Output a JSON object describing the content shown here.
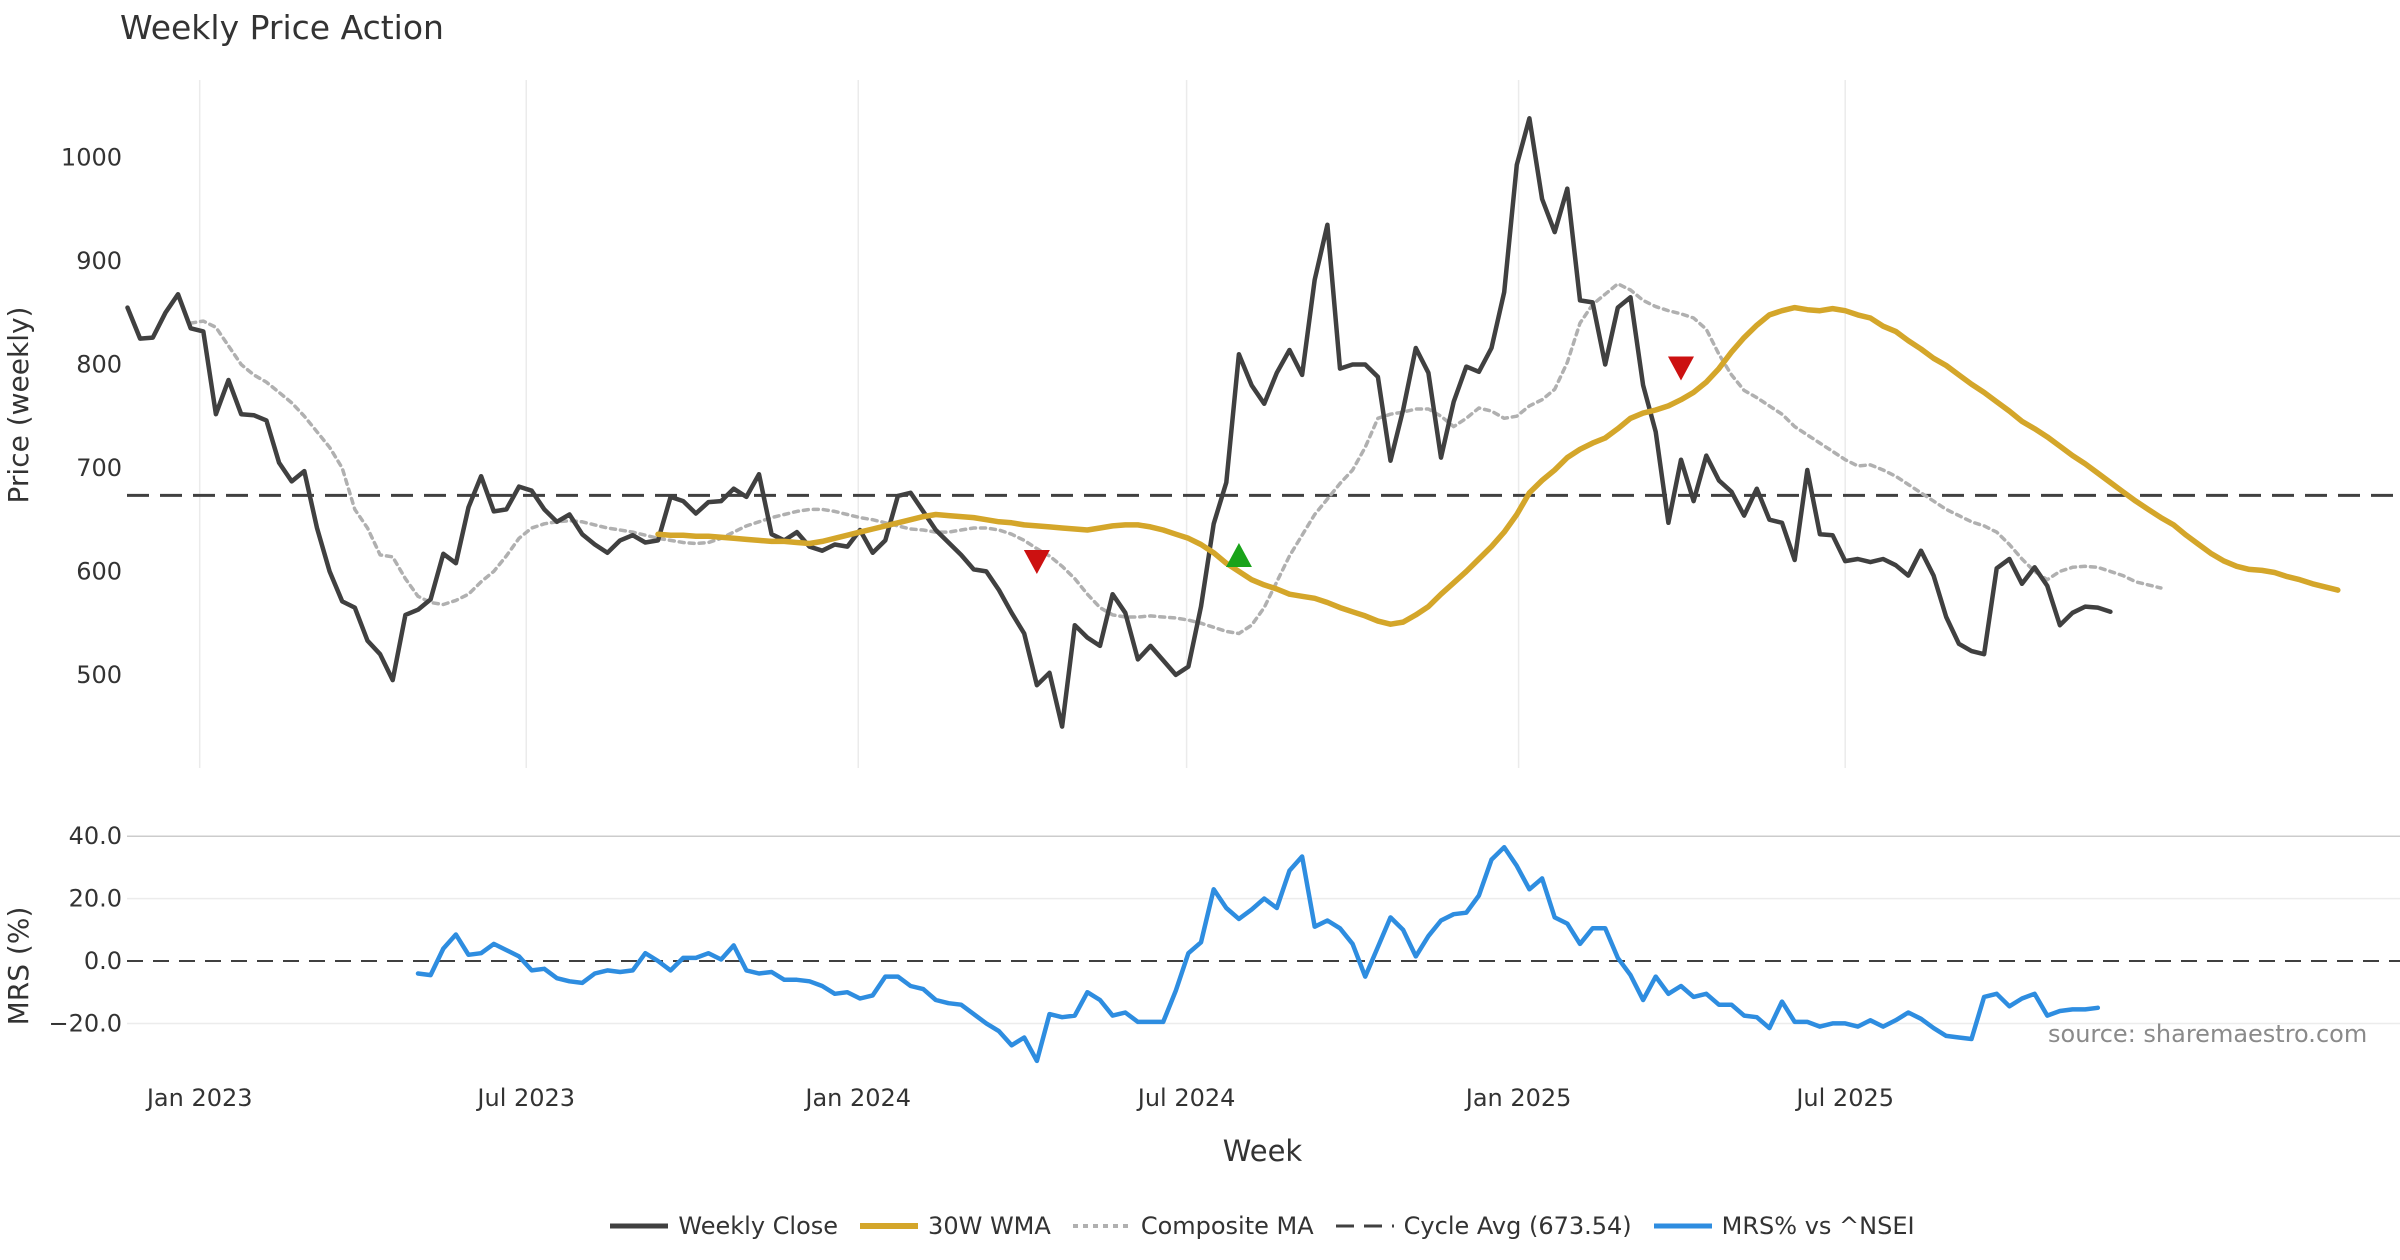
{
  "title": "Weekly Price Action",
  "source": "source: sharemaestro.com",
  "colors": {
    "close": "#404040",
    "wma": "#d4a62a",
    "composite": "#b0b0b0",
    "cycle": "#404040",
    "mrs": "#2e8de0",
    "buy": "#1aa31a",
    "sell": "#cc1111"
  },
  "legend": [
    {
      "key": "close",
      "label": "Weekly Close"
    },
    {
      "key": "wma",
      "label": "30W WMA"
    },
    {
      "key": "composite",
      "label": "Composite MA"
    },
    {
      "key": "cycle",
      "label": "Cycle Avg (673.54)"
    },
    {
      "key": "mrs",
      "label": "MRS% vs ^NSEI"
    }
  ],
  "chart_data": [
    {
      "type": "line",
      "panel": "price",
      "ylabel": "Price (weekly)",
      "yticks": [
        500,
        600,
        700,
        800,
        900,
        1000
      ],
      "ylim": [
        410,
        1075
      ],
      "x_start": "2022-11-22",
      "x_step_days": 7,
      "cycle_avg": 673.54,
      "series": [
        {
          "key": "close",
          "name": "Weekly Close",
          "start_index": 0,
          "values": [
            855,
            825,
            826,
            850,
            868,
            835,
            832,
            752,
            785,
            752,
            751,
            746,
            705,
            687,
            697,
            642,
            600,
            571,
            565,
            533,
            520,
            495,
            558,
            563,
            573,
            617,
            608,
            662,
            692,
            658,
            660,
            682,
            678,
            660,
            648,
            655,
            636,
            626,
            618,
            630,
            635,
            628,
            630,
            672,
            668,
            656,
            667,
            668,
            680,
            672,
            694,
            636,
            630,
            638,
            624,
            620,
            626,
            624,
            640,
            618,
            630,
            673,
            676,
            658,
            640,
            628,
            616,
            602,
            600,
            582,
            560,
            540,
            490,
            502,
            450,
            548,
            536,
            528,
            578,
            560,
            515,
            528,
            514,
            500,
            508,
            566,
            646,
            686,
            810,
            780,
            762,
            792,
            814,
            790,
            882,
            935,
            796,
            800,
            800,
            788,
            707,
            756,
            816,
            792,
            710,
            764,
            798,
            793,
            816,
            870,
            993,
            1038,
            960,
            928,
            970,
            862,
            860,
            800,
            855,
            865,
            780,
            735,
            647,
            708,
            668,
            712,
            688,
            677,
            654,
            680,
            650,
            647,
            611,
            698,
            636,
            635,
            610,
            612,
            609,
            612,
            606,
            596,
            620,
            596,
            556,
            530,
            523,
            520,
            603,
            612,
            588,
            604,
            586,
            548,
            560,
            566,
            565,
            561
          ]
        },
        {
          "key": "wma",
          "name": "30W WMA",
          "start_index": 42,
          "values": [
            636,
            635,
            635,
            634,
            634,
            633,
            632,
            631,
            630,
            629,
            629,
            628,
            627,
            629,
            632,
            635,
            638,
            641,
            644,
            647,
            650,
            653,
            655,
            654,
            653,
            652,
            650,
            648,
            647,
            645,
            644,
            643,
            642,
            641,
            640,
            642,
            644,
            645,
            645,
            643,
            640,
            636,
            632,
            626,
            618,
            608,
            600,
            592,
            587,
            583,
            578,
            576,
            574,
            570,
            565,
            561,
            557,
            552,
            549,
            551,
            558,
            566,
            578,
            589,
            600,
            612,
            624,
            638,
            655,
            676,
            688,
            698,
            710,
            718,
            724,
            729,
            738,
            748,
            753,
            756,
            760,
            766,
            773,
            783,
            796,
            812,
            826,
            838,
            848,
            852,
            855,
            853,
            852,
            854,
            852,
            848,
            845,
            837,
            832,
            823,
            815,
            806,
            799,
            790,
            781,
            773,
            764,
            755,
            745,
            738,
            730,
            721,
            712,
            704,
            695,
            686,
            677,
            668,
            660,
            652,
            645,
            635,
            626,
            617,
            610,
            605,
            602,
            601,
            599,
            595,
            592,
            588,
            585,
            582
          ]
        },
        {
          "key": "composite",
          "name": "Composite MA",
          "start_index": 5,
          "values": [
            840,
            842,
            836,
            818,
            800,
            790,
            783,
            773,
            763,
            750,
            735,
            720,
            700,
            660,
            642,
            616,
            614,
            593,
            576,
            570,
            568,
            572,
            578,
            590,
            600,
            615,
            632,
            642,
            646,
            648,
            649,
            648,
            645,
            642,
            640,
            638,
            635,
            632,
            630,
            628,
            627,
            628,
            632,
            638,
            644,
            648,
            652,
            655,
            658,
            660,
            660,
            658,
            655,
            652,
            650,
            647,
            644,
            641,
            640,
            638,
            638,
            640,
            642,
            642,
            640,
            636,
            630,
            622,
            615,
            605,
            593,
            578,
            565,
            558,
            556,
            556,
            557,
            556,
            555,
            553,
            550,
            546,
            542,
            540,
            548,
            565,
            590,
            615,
            635,
            655,
            670,
            685,
            698,
            720,
            748,
            752,
            754,
            757,
            757,
            750,
            740,
            748,
            758,
            755,
            748,
            750,
            760,
            766,
            776,
            802,
            840,
            858,
            868,
            878,
            872,
            862,
            856,
            852,
            849,
            845,
            834,
            810,
            790,
            775,
            768,
            760,
            752,
            740,
            732,
            724,
            716,
            708,
            702,
            703,
            698,
            692,
            684,
            676,
            668,
            660,
            654,
            648,
            644,
            638,
            626,
            612,
            600,
            592,
            600,
            604,
            605,
            604,
            600,
            596,
            590,
            587,
            584
          ]
        }
      ],
      "signals": [
        {
          "type": "sell",
          "index": 72,
          "y": 613
        },
        {
          "type": "buy",
          "index": 88,
          "y": 612
        },
        {
          "type": "sell",
          "index": 123,
          "y": 800
        }
      ]
    },
    {
      "type": "line",
      "panel": "mrs",
      "ylabel": "MRS (%)",
      "yticks": [
        -20.0,
        0.0,
        20.0,
        40.0
      ],
      "ytick_labels": [
        "−20.0",
        "0.0",
        "20.0",
        "40.0"
      ],
      "ylim": [
        -33,
        42
      ],
      "series": [
        {
          "key": "mrs",
          "name": "MRS% vs ^NSEI",
          "start_index": 23,
          "values": [
            -4,
            -4.5,
            4,
            8.5,
            2,
            2.5,
            5.5,
            3.5,
            1.5,
            -3,
            -2.5,
            -5.5,
            -6.5,
            -7,
            -4,
            -3,
            -3.5,
            -3,
            2.5,
            0,
            -3,
            1,
            1,
            2.5,
            0.5,
            5,
            -3,
            -4,
            -3.5,
            -6,
            -6,
            -6.5,
            -8,
            -10.5,
            -10,
            -12,
            -11,
            -5,
            -5,
            -8,
            -9,
            -12.5,
            -13.5,
            -14,
            -17,
            -20,
            -22.5,
            -27,
            -24.5,
            -32,
            -17,
            -18,
            -17.5,
            -10,
            -12.5,
            -17.5,
            -16.5,
            -19.5,
            -19.5,
            -19.5,
            -9.5,
            2.5,
            6,
            23,
            17,
            13.5,
            16.5,
            20,
            17,
            29,
            33.5,
            11,
            13,
            10.5,
            5.5,
            -5,
            4.5,
            14,
            10,
            1.5,
            8,
            13,
            15,
            15.5,
            21,
            32.5,
            36.5,
            30.5,
            23,
            26.5,
            14,
            12,
            5.5,
            10.5,
            10.5,
            1,
            -4.5,
            -12.5,
            -5,
            -10.5,
            -8,
            -11.5,
            -10.5,
            -14,
            -14,
            -17.5,
            -18,
            -21.5,
            -13,
            -19.5,
            -19.5,
            -21,
            -20,
            -20,
            -21,
            -19,
            -21,
            -19,
            -16.5,
            -18.5,
            -21.5,
            -24,
            -24.5,
            -25,
            -11.5,
            -10.5,
            -14.5,
            -12,
            -10.5,
            -17.5,
            -16,
            -15.5,
            -15.5,
            -15
          ]
        }
      ]
    }
  ],
  "x_axis": {
    "label": "Week",
    "ticks": [
      {
        "date": "2023-01-01",
        "label": "Jan 2023"
      },
      {
        "date": "2023-07-01",
        "label": "Jul 2023"
      },
      {
        "date": "2024-01-01",
        "label": "Jan 2024"
      },
      {
        "date": "2024-07-01",
        "label": "Jul 2024"
      },
      {
        "date": "2025-01-01",
        "label": "Jan 2025"
      },
      {
        "date": "2025-07-01",
        "label": "Jul 2025"
      }
    ]
  }
}
